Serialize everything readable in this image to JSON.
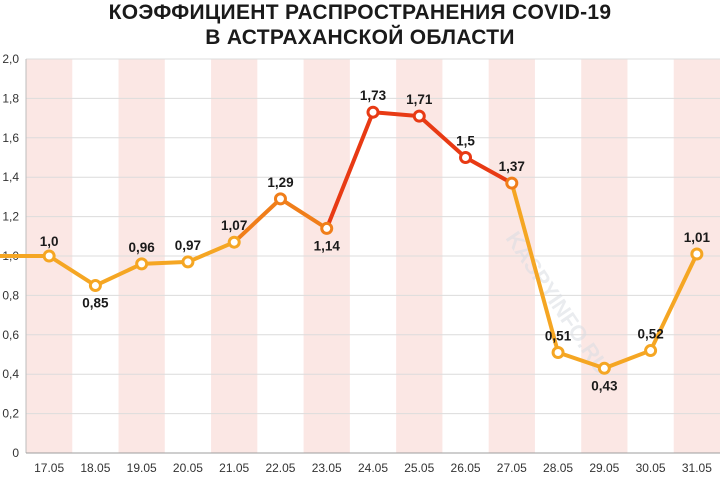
{
  "chart_data": {
    "type": "line",
    "title_line1": "КОЭФФИЦИЕНТ РАСПРОСТРАНЕНИЯ COVID-19",
    "title_line2": "В АСТРАХАНСКОЙ ОБЛАСТИ",
    "categories": [
      "17.05",
      "18.05",
      "19.05",
      "20.05",
      "21.05",
      "22.05",
      "23.05",
      "24.05",
      "25.05",
      "26.05",
      "27.05",
      "28.05",
      "29.05",
      "30.05",
      "31.05"
    ],
    "values": [
      1.0,
      0.85,
      0.96,
      0.97,
      1.07,
      1.29,
      1.14,
      1.73,
      1.71,
      1.5,
      1.37,
      0.51,
      0.43,
      0.52,
      1.01
    ],
    "value_labels": [
      "1,0",
      "0,85",
      "0,96",
      "0,97",
      "1,07",
      "1,29",
      "1,14",
      "1,73",
      "1,71",
      "1,5",
      "1,37",
      "0,51",
      "0,43",
      "0,52",
      "1,01"
    ],
    "ylim": [
      0,
      2.0
    ],
    "yticks": [
      0,
      0.2,
      0.4,
      0.6,
      0.8,
      1.0,
      1.2,
      1.4,
      1.6,
      1.8,
      2.0
    ],
    "ytick_labels": [
      "0",
      "0,2",
      "0,4",
      "0,6",
      "0,8",
      "1,0",
      "1,2",
      "1,4",
      "1,6",
      "1,8",
      "2,0"
    ],
    "grid": true,
    "start_value": 1.0,
    "colors": {
      "line_low": "#f5a623",
      "line_mid": "#f07e1a",
      "line_high": "#e83a14",
      "band": "#fbe7e4",
      "grid": "#dcdcdc"
    },
    "watermark": "KASPYINFO.RU"
  }
}
